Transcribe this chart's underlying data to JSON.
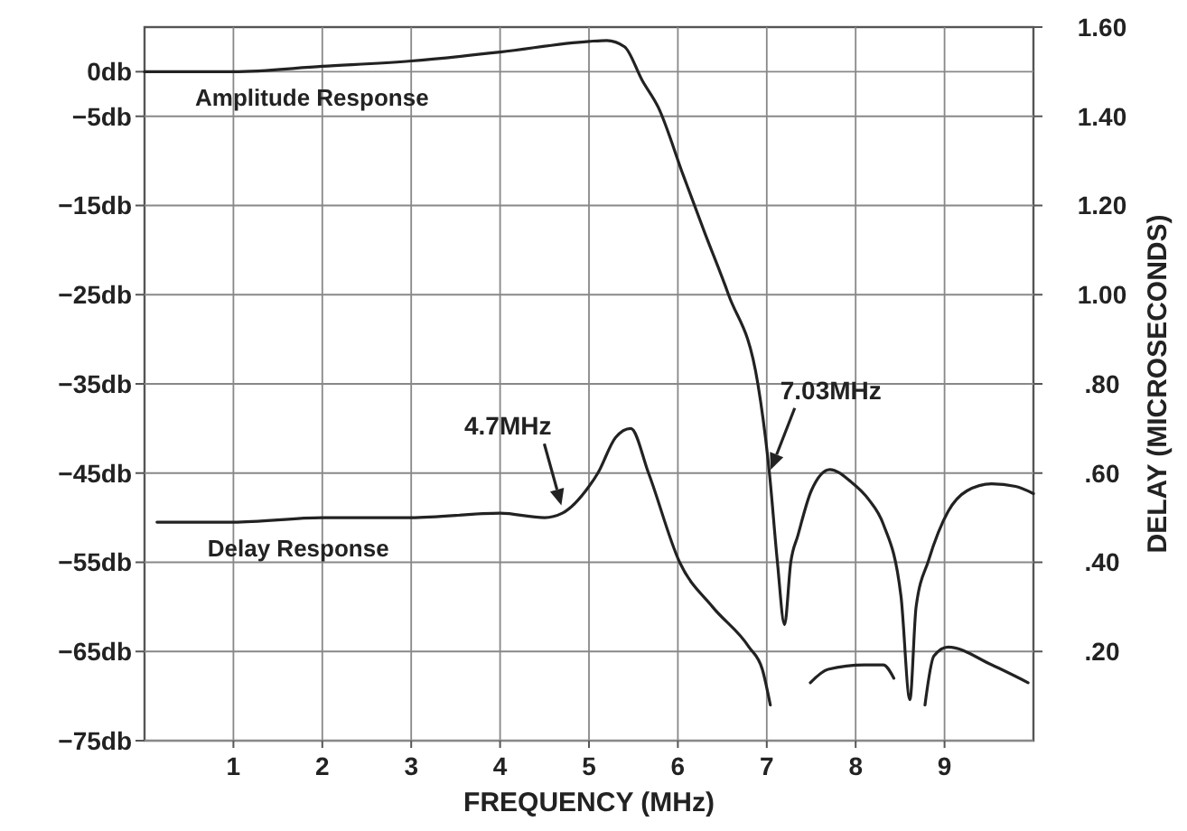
{
  "chart_data": {
    "type": "line",
    "xlabel": "FREQUENCY (MHz)",
    "y2label": "DELAY (MICROSECONDS)",
    "xlim": [
      0,
      10
    ],
    "xticks": [
      1,
      2,
      3,
      4,
      5,
      6,
      7,
      8,
      9
    ],
    "ylim": [
      -75,
      5
    ],
    "yticks": [
      {
        "value": 0,
        "label": "0db"
      },
      {
        "value": -5,
        "label": "−5db"
      },
      {
        "value": -15,
        "label": "−15db"
      },
      {
        "value": -25,
        "label": "−25db"
      },
      {
        "value": -35,
        "label": "−35db"
      },
      {
        "value": -45,
        "label": "−45db"
      },
      {
        "value": -55,
        "label": "−55db"
      },
      {
        "value": -65,
        "label": "−65db"
      },
      {
        "value": -75,
        "label": "−75db"
      }
    ],
    "y2lim": [
      0,
      1.6
    ],
    "y2ticks": [
      {
        "value": 0.2,
        "label": ".20"
      },
      {
        "value": 0.4,
        "label": ".40"
      },
      {
        "value": 0.6,
        "label": ".60"
      },
      {
        "value": 0.8,
        "label": ".80"
      },
      {
        "value": 1.0,
        "label": "1.00"
      },
      {
        "value": 1.2,
        "label": "1.20"
      },
      {
        "value": 1.4,
        "label": "1.40"
      },
      {
        "value": 1.6,
        "label": "1.60"
      }
    ],
    "grid": true,
    "marker": "none",
    "line_style": "solid",
    "series": [
      {
        "name": "Amplitude Response",
        "color": "#222222",
        "x": [
          0,
          1,
          2,
          3,
          4,
          5,
          5.2,
          5.4,
          5.6,
          5.78,
          6.06,
          6.3,
          6.57,
          6.9,
          7.03,
          7.12,
          7.2,
          7.27,
          7.35,
          7.5,
          7.71,
          7.95,
          8.15,
          8.31,
          8.51,
          8.61,
          8.68,
          8.82,
          9.04,
          9.25,
          9.53,
          9.8,
          10
        ],
        "values": [
          0,
          0,
          0.6,
          1.2,
          2.2,
          3.4,
          3.5,
          2.8,
          -1,
          -4,
          -11.6,
          -18,
          -25,
          -35,
          -45,
          -55,
          -62,
          -55,
          -52,
          -47,
          -44.6,
          -46,
          -48,
          -50.7,
          -58.8,
          -70.4,
          -60,
          -54.8,
          -49.3,
          -47,
          -46.2,
          -46.5,
          -47.3
        ]
      },
      {
        "name": "Delay Response",
        "color": "#222222",
        "axis": "y2",
        "x": [
          0.14,
          1,
          2,
          3,
          4,
          4.5,
          4.7,
          5,
          5.1,
          5.3,
          5.47,
          5.67,
          6.02,
          6.39,
          6.8,
          6.95,
          7.04,
          7.2,
          7.49,
          7.69,
          8.1,
          8.31,
          8.43,
          8.6,
          8.78,
          8.88,
          9.04,
          9.53,
          9.94
        ],
        "values": [
          0.49,
          0.49,
          0.5,
          0.5,
          0.51,
          0.5,
          0.51,
          0.57,
          0.6,
          0.68,
          0.7,
          0.6,
          0.4,
          0.3,
          0.21,
          0.16,
          0.08,
          null,
          0.13,
          0.16,
          0.17,
          0.17,
          0.14,
          null,
          0.08,
          0.19,
          0.21,
          0.17,
          0.13
        ]
      }
    ],
    "annotations": [
      {
        "text": "4.7MHz",
        "x": 4.7,
        "y": -49
      },
      {
        "text": "7.03MHz",
        "x": 7.03,
        "y": -45
      }
    ]
  }
}
